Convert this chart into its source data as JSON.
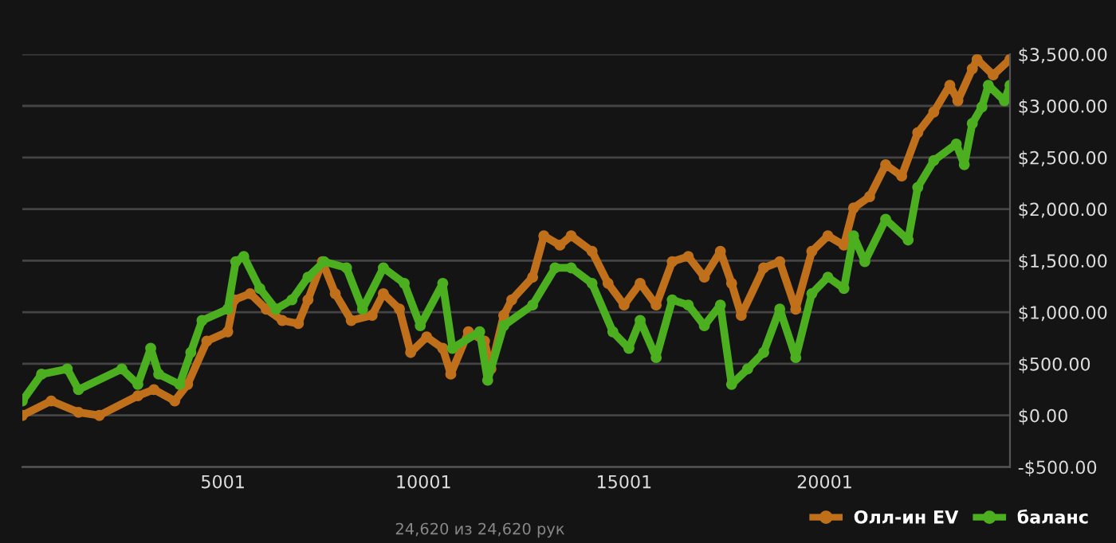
{
  "chart_data": {
    "type": "line",
    "marker": "circle",
    "line_style": "solid",
    "grid": "y",
    "legend": "bottom right",
    "xlim": [
      1,
      24620
    ],
    "xticks": [
      5001,
      10001,
      15001,
      20001
    ],
    "ylim": [
      -500,
      3500
    ],
    "yticks": [
      {
        "value": -500,
        "label": "-$500.00"
      },
      {
        "value": 0,
        "label": "$0.00"
      },
      {
        "value": 500,
        "label": "$500.00"
      },
      {
        "value": 1000,
        "label": "$1,000.00"
      },
      {
        "value": 1500,
        "label": "$1,500.00"
      },
      {
        "value": 2000,
        "label": "$2,000.00"
      },
      {
        "value": 2500,
        "label": "$2,500.00"
      },
      {
        "value": 3000,
        "label": "$3,000.00"
      },
      {
        "value": 3500,
        "label": "$3,500.00"
      }
    ],
    "annotations": [
      "24,620 из 24,620 рук"
    ],
    "series": [
      {
        "name": "Олл-ин EV",
        "color": "#c0701a",
        "x": [
          1,
          721,
          1401,
          1921,
          2881,
          3281,
          3801,
          4121,
          4601,
          5121,
          5281,
          5681,
          6081,
          6481,
          6881,
          7121,
          7481,
          7801,
          8201,
          8721,
          9001,
          9401,
          9681,
          10081,
          10481,
          10681,
          11121,
          11521,
          11681,
          12001,
          12201,
          12721,
          13001,
          13401,
          13681,
          14201,
          14601,
          15001,
          15401,
          15801,
          16201,
          16601,
          17001,
          17401,
          17681,
          17921,
          18481,
          18881,
          19281,
          19681,
          20081,
          20481,
          20721,
          21121,
          21521,
          21921,
          22321,
          22721,
          23121,
          23321,
          23681,
          23801,
          24201,
          24620
        ],
        "values": [
          0,
          140,
          30,
          0,
          190,
          250,
          140,
          300,
          720,
          810,
          1120,
          1180,
          1030,
          920,
          890,
          1120,
          1490,
          1180,
          920,
          970,
          1180,
          1030,
          610,
          760,
          650,
          400,
          810,
          720,
          450,
          970,
          1120,
          1340,
          1740,
          1650,
          1740,
          1590,
          1280,
          1070,
          1280,
          1070,
          1490,
          1540,
          1340,
          1590,
          1280,
          970,
          1430,
          1490,
          1030,
          1590,
          1740,
          1650,
          2010,
          2120,
          2430,
          2320,
          2740,
          2940,
          3200,
          3050,
          3360,
          3450,
          3300,
          3450
        ]
      },
      {
        "name": "баланс",
        "color": "#4caf1f",
        "x": [
          1,
          481,
          1121,
          1401,
          2481,
          2881,
          3201,
          3401,
          3921,
          4201,
          4481,
          5121,
          5321,
          5521,
          5921,
          6321,
          6721,
          7121,
          7521,
          8081,
          8481,
          9001,
          9521,
          9921,
          10481,
          10721,
          11401,
          11601,
          12001,
          12721,
          13281,
          13681,
          14201,
          14721,
          15121,
          15401,
          15801,
          16201,
          16601,
          17001,
          17401,
          17681,
          18081,
          18481,
          18881,
          19281,
          19681,
          20081,
          20481,
          20721,
          21001,
          21521,
          22081,
          22321,
          22721,
          23281,
          23481,
          23681,
          23921,
          24081,
          24481,
          24620
        ],
        "values": [
          140,
          400,
          450,
          250,
          450,
          300,
          650,
          400,
          300,
          610,
          920,
          1030,
          1490,
          1540,
          1230,
          1030,
          1120,
          1340,
          1490,
          1430,
          1030,
          1430,
          1280,
          870,
          1280,
          650,
          810,
          340,
          870,
          1070,
          1430,
          1430,
          1280,
          810,
          650,
          920,
          560,
          1120,
          1070,
          870,
          1070,
          300,
          450,
          610,
          1030,
          560,
          1180,
          1340,
          1230,
          1740,
          1490,
          1900,
          1700,
          2210,
          2470,
          2630,
          2430,
          2830,
          2990,
          3200,
          3050,
          3200
        ]
      }
    ]
  }
}
